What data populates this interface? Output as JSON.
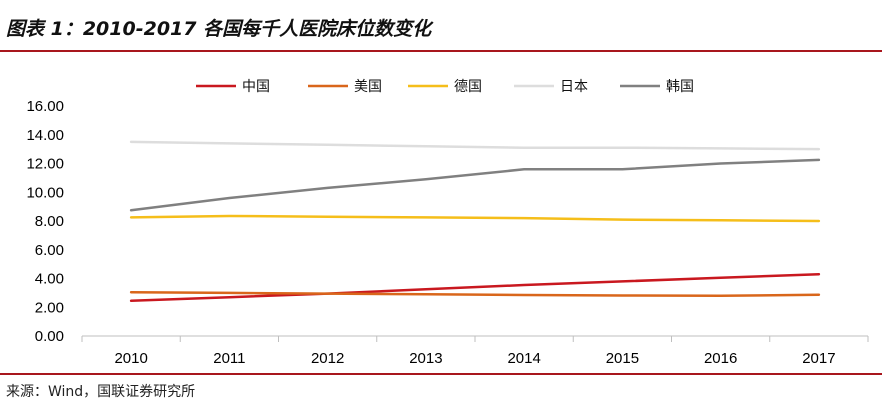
{
  "header": {
    "title": "图表 1：2010-2017 各国每千人医院床位数变化"
  },
  "footer": {
    "source": "来源：Wind，国联证券研究所"
  },
  "chart_data": {
    "type": "line",
    "title": "",
    "xlabel": "",
    "ylabel": "",
    "x": [
      "2010",
      "2011",
      "2012",
      "2013",
      "2014",
      "2015",
      "2016",
      "2017"
    ],
    "ylim": [
      0,
      16
    ],
    "yticks": [
      "0.00",
      "2.00",
      "4.00",
      "6.00",
      "8.00",
      "10.00",
      "12.00",
      "14.00",
      "16.00"
    ],
    "grid": false,
    "legend_position": "top",
    "series": [
      {
        "name": "中国",
        "color": "#c9181f",
        "values": [
          2.45,
          2.7,
          2.95,
          3.25,
          3.55,
          3.8,
          4.05,
          4.3
        ]
      },
      {
        "name": "美国",
        "color": "#d9661b",
        "values": [
          3.05,
          3.0,
          2.95,
          2.9,
          2.85,
          2.82,
          2.8,
          2.87
        ]
      },
      {
        "name": "德国",
        "color": "#f5be1a",
        "values": [
          8.25,
          8.35,
          8.3,
          8.25,
          8.2,
          8.1,
          8.05,
          8.0
        ]
      },
      {
        "name": "日本",
        "color": "#dddddd",
        "values": [
          13.5,
          13.4,
          13.3,
          13.2,
          13.1,
          13.1,
          13.05,
          13.0
        ]
      },
      {
        "name": "韩国",
        "color": "#808080",
        "values": [
          8.75,
          9.6,
          10.3,
          10.9,
          11.6,
          11.6,
          12.0,
          12.25
        ]
      }
    ]
  }
}
